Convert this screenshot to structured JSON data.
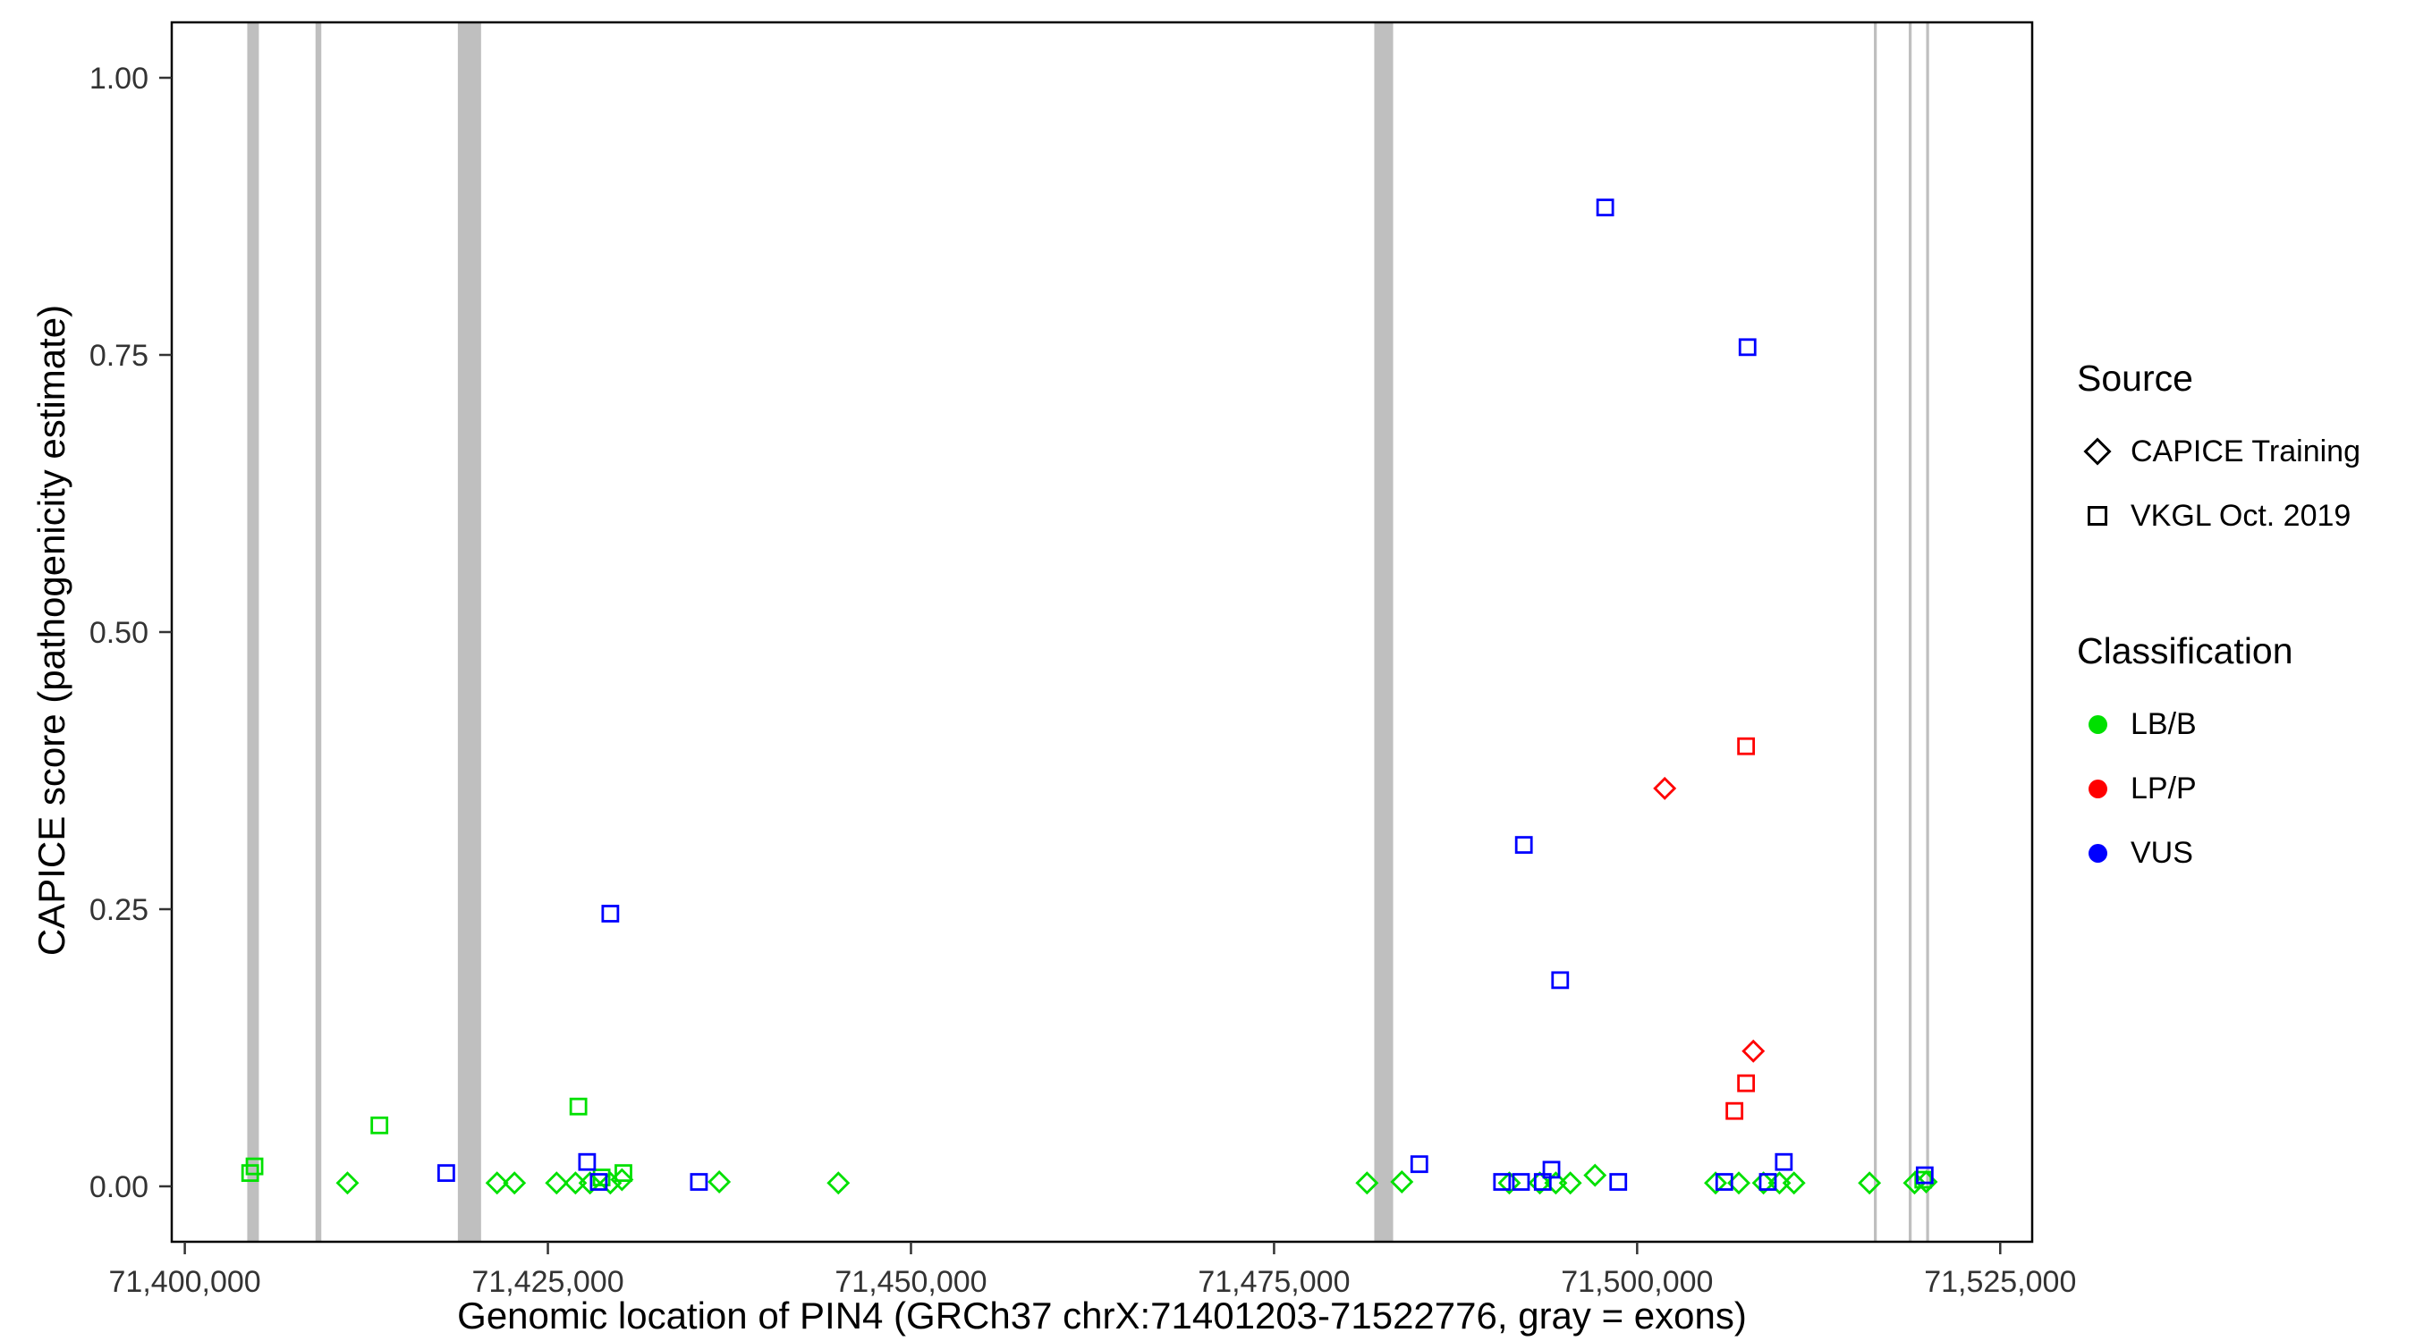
{
  "chart_data": {
    "type": "scatter",
    "title": "",
    "xlabel": "Genomic location of PIN4 (GRCh37 chrX:71401203-71522776, gray = exons)",
    "ylabel": "CAPICE score (pathogenicity estimate)",
    "exon_color": "#bfbfbf",
    "x_axis": {
      "range": [
        71399100,
        71527200
      ],
      "ticks": [
        {
          "value": 71400000,
          "label": "71,400,000"
        },
        {
          "value": 71425000,
          "label": "71,425,000"
        },
        {
          "value": 71450000,
          "label": "71,450,000"
        },
        {
          "value": 71475000,
          "label": "71,475,000"
        },
        {
          "value": 71500000,
          "label": "71,500,000"
        },
        {
          "value": 71525000,
          "label": "71,525,000"
        }
      ]
    },
    "y_axis": {
      "range": [
        -0.05,
        1.05
      ],
      "ticks": [
        {
          "value": 0.0,
          "label": "0.00"
        },
        {
          "value": 0.25,
          "label": "0.25"
        },
        {
          "value": 0.5,
          "label": "0.50"
        },
        {
          "value": 0.75,
          "label": "0.75"
        },
        {
          "value": 1.0,
          "label": "1.00"
        }
      ]
    },
    "exons": [
      {
        "start": 71404300,
        "end": 71405100
      },
      {
        "start": 71409000,
        "end": 71409400
      },
      {
        "start": 71418800,
        "end": 71420400
      },
      {
        "start": 71481900,
        "end": 71483200
      },
      {
        "start": 71516300,
        "end": 71516500
      },
      {
        "start": 71518700,
        "end": 71518900
      },
      {
        "start": 71519900,
        "end": 71520100
      }
    ],
    "series": [
      {
        "name": "CAPICE Training / LB/B",
        "source": "CAPICE Training",
        "classification": "LB/B",
        "marker": "diamond",
        "color": "#00e000",
        "points": [
          {
            "x": 71411200,
            "y": 0.003
          },
          {
            "x": 71421500,
            "y": 0.003
          },
          {
            "x": 71422700,
            "y": 0.003
          },
          {
            "x": 71425600,
            "y": 0.003
          },
          {
            "x": 71426900,
            "y": 0.003
          },
          {
            "x": 71427900,
            "y": 0.003
          },
          {
            "x": 71429300,
            "y": 0.003
          },
          {
            "x": 71430100,
            "y": 0.006
          },
          {
            "x": 71436800,
            "y": 0.004
          },
          {
            "x": 71445000,
            "y": 0.003
          },
          {
            "x": 71481400,
            "y": 0.003
          },
          {
            "x": 71483800,
            "y": 0.004
          },
          {
            "x": 71491200,
            "y": 0.003
          },
          {
            "x": 71493300,
            "y": 0.003
          },
          {
            "x": 71494400,
            "y": 0.003
          },
          {
            "x": 71495400,
            "y": 0.003
          },
          {
            "x": 71497100,
            "y": 0.01
          },
          {
            "x": 71505400,
            "y": 0.003
          },
          {
            "x": 71507000,
            "y": 0.003
          },
          {
            "x": 71508700,
            "y": 0.003
          },
          {
            "x": 71509800,
            "y": 0.003
          },
          {
            "x": 71510800,
            "y": 0.003
          },
          {
            "x": 71516000,
            "y": 0.003
          },
          {
            "x": 71519100,
            "y": 0.003
          },
          {
            "x": 71519900,
            "y": 0.004
          }
        ]
      },
      {
        "name": "CAPICE Training / LP/P",
        "source": "CAPICE Training",
        "classification": "LP/P",
        "marker": "diamond",
        "color": "#ff0000",
        "points": [
          {
            "x": 71501900,
            "y": 0.359
          },
          {
            "x": 71508000,
            "y": 0.122
          }
        ]
      },
      {
        "name": "VKGL Oct. 2019 / LB/B",
        "source": "VKGL Oct. 2019",
        "classification": "LB/B",
        "marker": "square",
        "color": "#00e000",
        "points": [
          {
            "x": 71404500,
            "y": 0.012
          },
          {
            "x": 71404800,
            "y": 0.018
          },
          {
            "x": 71413400,
            "y": 0.055
          },
          {
            "x": 71427100,
            "y": 0.072
          },
          {
            "x": 71428700,
            "y": 0.008
          },
          {
            "x": 71430200,
            "y": 0.012
          },
          {
            "x": 71519700,
            "y": 0.006
          }
        ]
      },
      {
        "name": "VKGL Oct. 2019 / LP/P",
        "source": "VKGL Oct. 2019",
        "classification": "LP/P",
        "marker": "square",
        "color": "#ff0000",
        "points": [
          {
            "x": 71507500,
            "y": 0.397
          },
          {
            "x": 71507500,
            "y": 0.093
          },
          {
            "x": 71506700,
            "y": 0.068
          }
        ]
      },
      {
        "name": "VKGL Oct. 2019 / VUS",
        "source": "VKGL Oct. 2019",
        "classification": "VUS",
        "marker": "square",
        "color": "#0000ff",
        "points": [
          {
            "x": 71497800,
            "y": 0.883
          },
          {
            "x": 71507600,
            "y": 0.757
          },
          {
            "x": 71429300,
            "y": 0.246
          },
          {
            "x": 71492200,
            "y": 0.308
          },
          {
            "x": 71494700,
            "y": 0.186
          },
          {
            "x": 71418000,
            "y": 0.012
          },
          {
            "x": 71427700,
            "y": 0.022
          },
          {
            "x": 71428500,
            "y": 0.004
          },
          {
            "x": 71435400,
            "y": 0.004
          },
          {
            "x": 71485000,
            "y": 0.02
          },
          {
            "x": 71490700,
            "y": 0.004
          },
          {
            "x": 71492000,
            "y": 0.004
          },
          {
            "x": 71493500,
            "y": 0.004
          },
          {
            "x": 71494100,
            "y": 0.015
          },
          {
            "x": 71498700,
            "y": 0.004
          },
          {
            "x": 71506000,
            "y": 0.004
          },
          {
            "x": 71509000,
            "y": 0.004
          },
          {
            "x": 71510100,
            "y": 0.022
          },
          {
            "x": 71519800,
            "y": 0.01
          }
        ]
      }
    ],
    "legend": {
      "source_title": "Source",
      "source_items": [
        {
          "label": "CAPICE Training",
          "marker": "diamond"
        },
        {
          "label": "VKGL Oct. 2019",
          "marker": "square"
        }
      ],
      "classification_title": "Classification",
      "classification_items": [
        {
          "label": "LB/B",
          "color": "#00e000"
        },
        {
          "label": "LP/P",
          "color": "#ff0000"
        },
        {
          "label": "VUS",
          "color": "#0000ff"
        }
      ]
    }
  }
}
